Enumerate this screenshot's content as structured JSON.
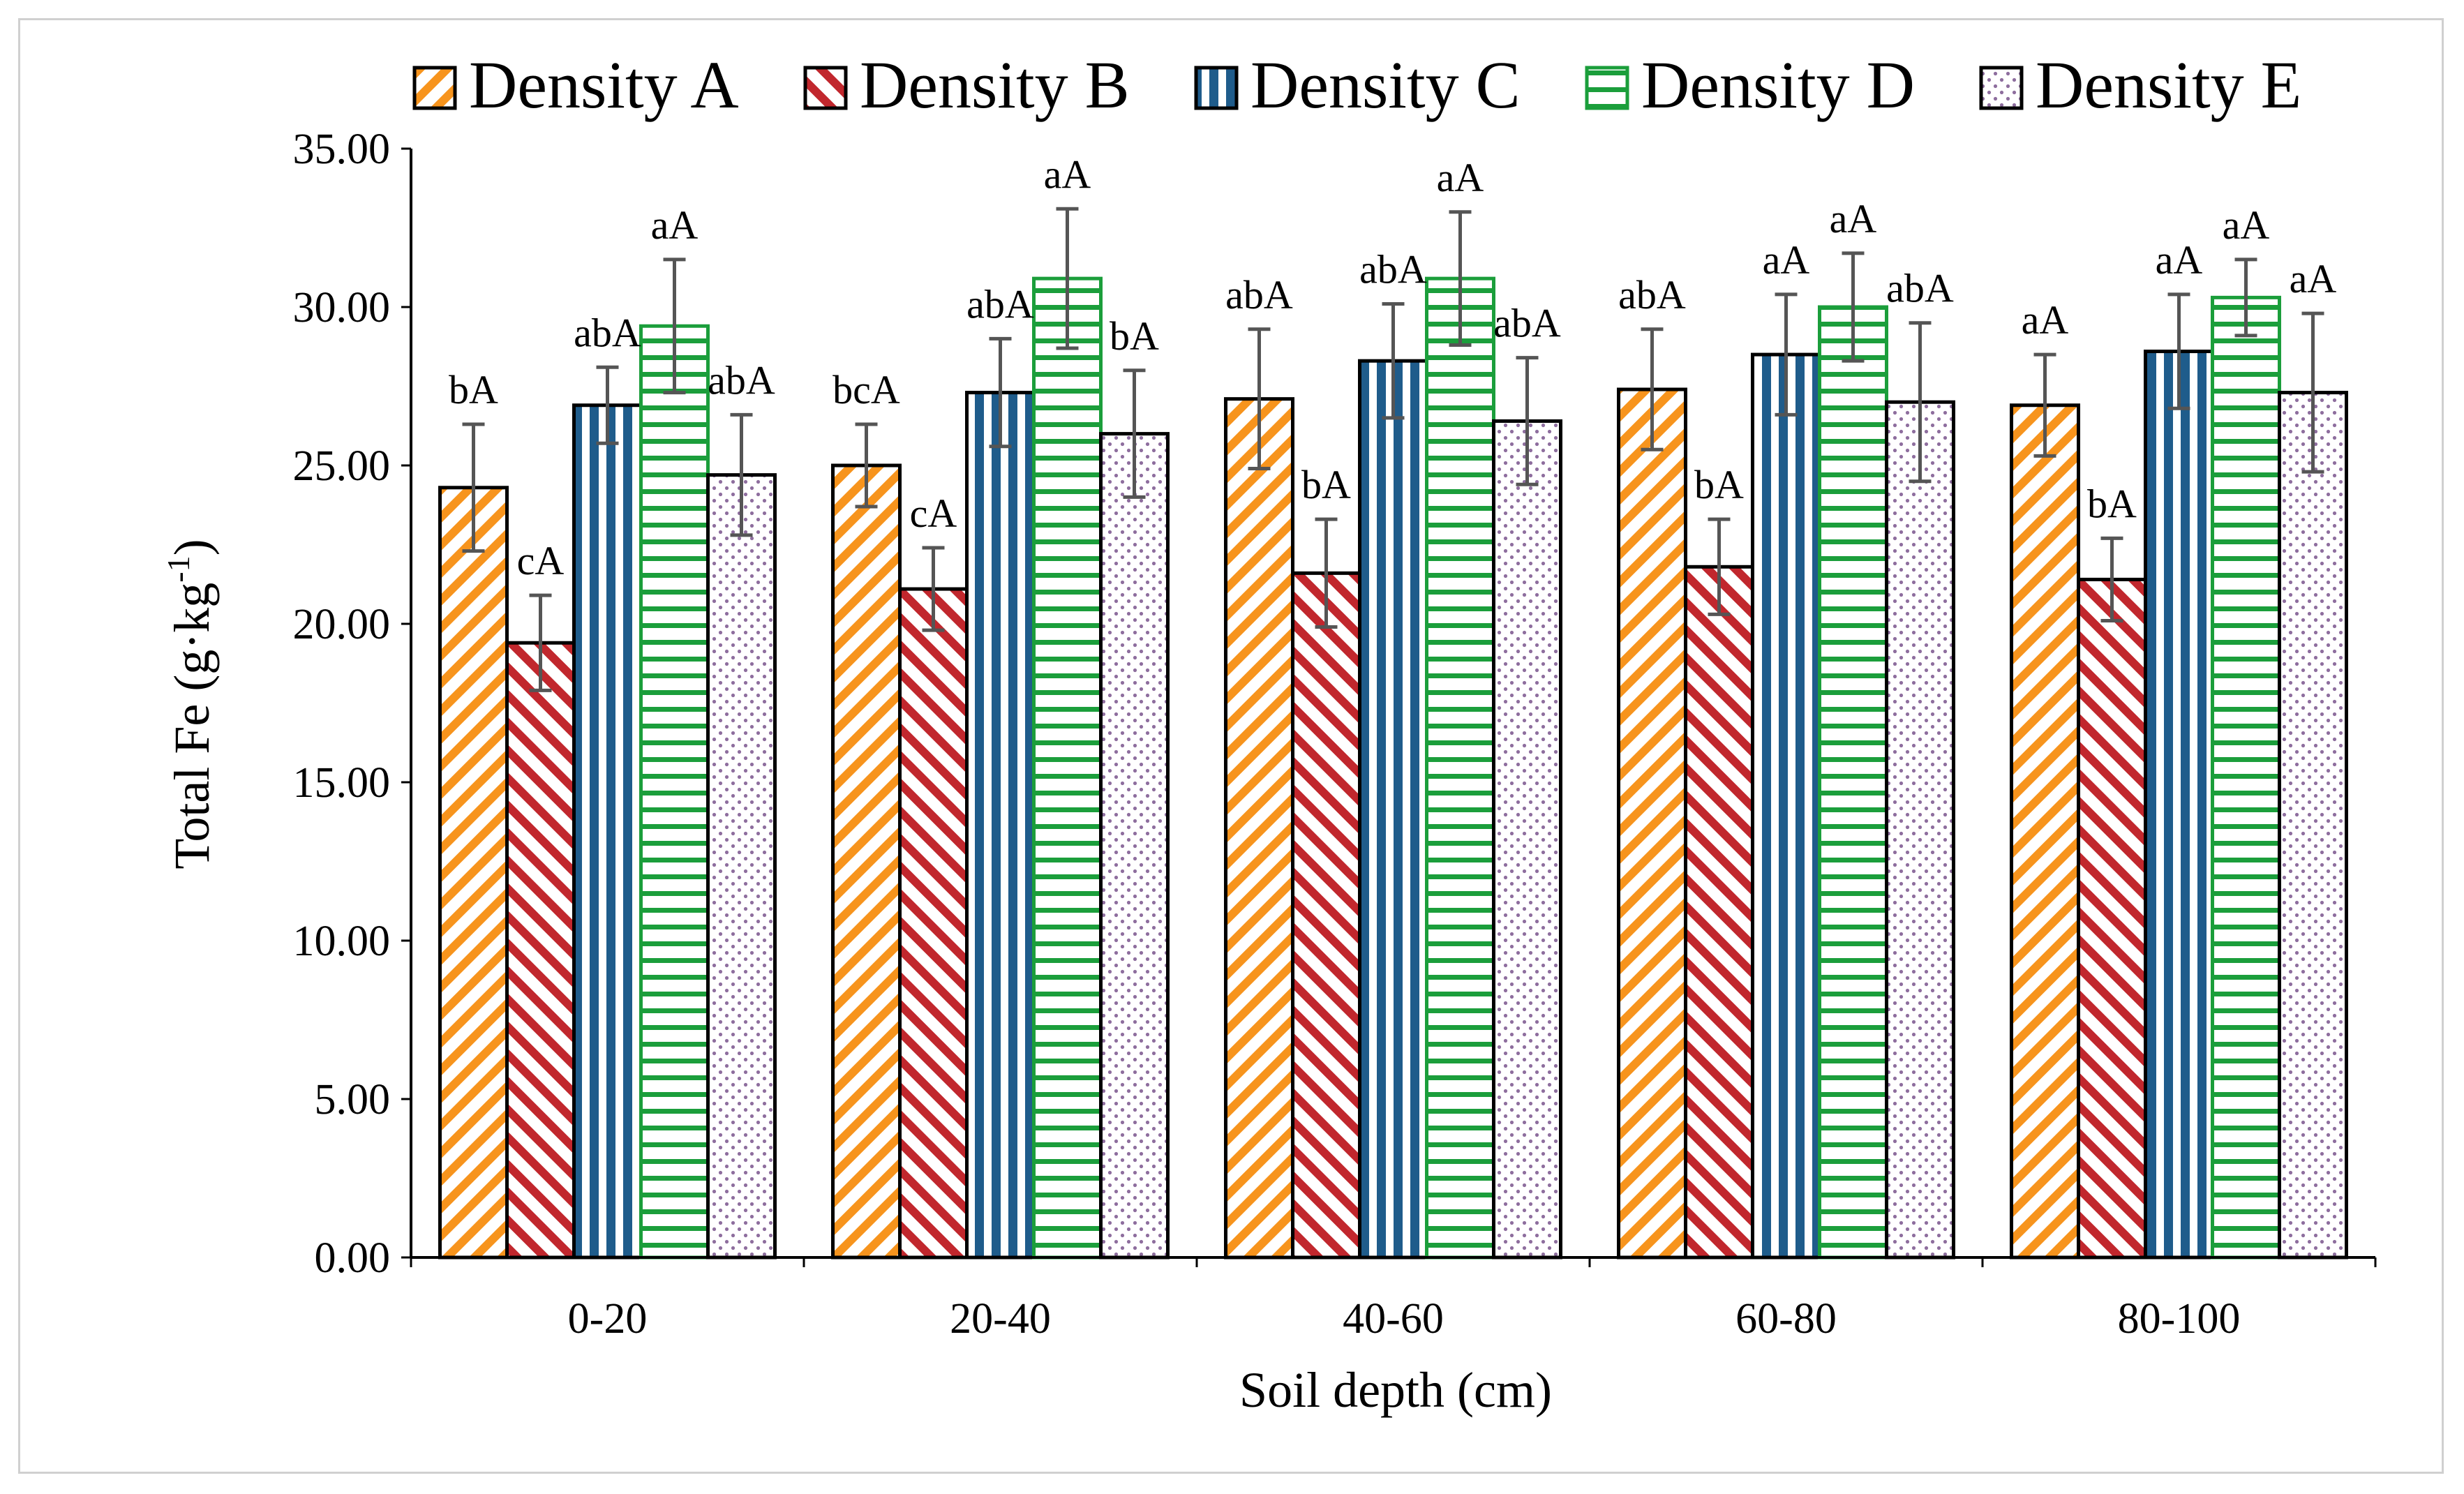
{
  "chart_data": {
    "type": "bar",
    "title": "",
    "xlabel": "Soil depth (cm)",
    "ylabel_main": "Total Fe (g·kg",
    "ylabel_sup": "-1",
    "ylabel_close": ")",
    "ylim": [
      0,
      35
    ],
    "yticks": [
      0,
      5,
      10,
      15,
      20,
      25,
      30,
      35
    ],
    "ytick_labels": [
      "0.00",
      "5.00",
      "10.00",
      "15.00",
      "20.00",
      "25.00",
      "30.00",
      "35.00"
    ],
    "categories": [
      "0-20",
      "20-40",
      "40-60",
      "60-80",
      "80-100"
    ],
    "legend_position": "top",
    "series": [
      {
        "name": "Density A",
        "pattern": "diagonal-up",
        "color": "#f7941d",
        "values": [
          24.3,
          25.0,
          27.1,
          27.4,
          26.9
        ],
        "errors": [
          2.0,
          1.3,
          2.2,
          1.9,
          1.6
        ],
        "labels": [
          "bA",
          "bcA",
          "abA",
          "abA",
          "aA"
        ]
      },
      {
        "name": "Density B",
        "pattern": "diagonal-down",
        "color": "#c1272d",
        "values": [
          19.4,
          21.1,
          21.6,
          21.8,
          21.4
        ],
        "errors": [
          1.5,
          1.3,
          1.7,
          1.5,
          1.3
        ],
        "labels": [
          "cA",
          "cA",
          "bA",
          "bA",
          "bA"
        ]
      },
      {
        "name": "Density C",
        "pattern": "vertical",
        "color": "#1f5c8b",
        "values": [
          26.9,
          27.3,
          28.3,
          28.5,
          28.6
        ],
        "errors": [
          1.2,
          1.7,
          1.8,
          1.9,
          1.8
        ],
        "labels": [
          "abA",
          "abA",
          "abA",
          "aA",
          "aA"
        ]
      },
      {
        "name": "Density D",
        "pattern": "horizontal",
        "color": "#1b9e3b",
        "values": [
          29.4,
          30.9,
          30.9,
          30.0,
          30.3
        ],
        "errors": [
          2.1,
          2.2,
          2.1,
          1.7,
          1.2
        ],
        "labels": [
          "aA",
          "aA",
          "aA",
          "aA",
          "aA"
        ]
      },
      {
        "name": "Density E",
        "pattern": "dots",
        "color": "#8e6e9e",
        "values": [
          24.7,
          26.0,
          26.4,
          27.0,
          27.3
        ],
        "errors": [
          1.9,
          2.0,
          2.0,
          2.5,
          2.5
        ],
        "labels": [
          "abA",
          "bA",
          "abA",
          "abA",
          "aA"
        ]
      }
    ]
  }
}
